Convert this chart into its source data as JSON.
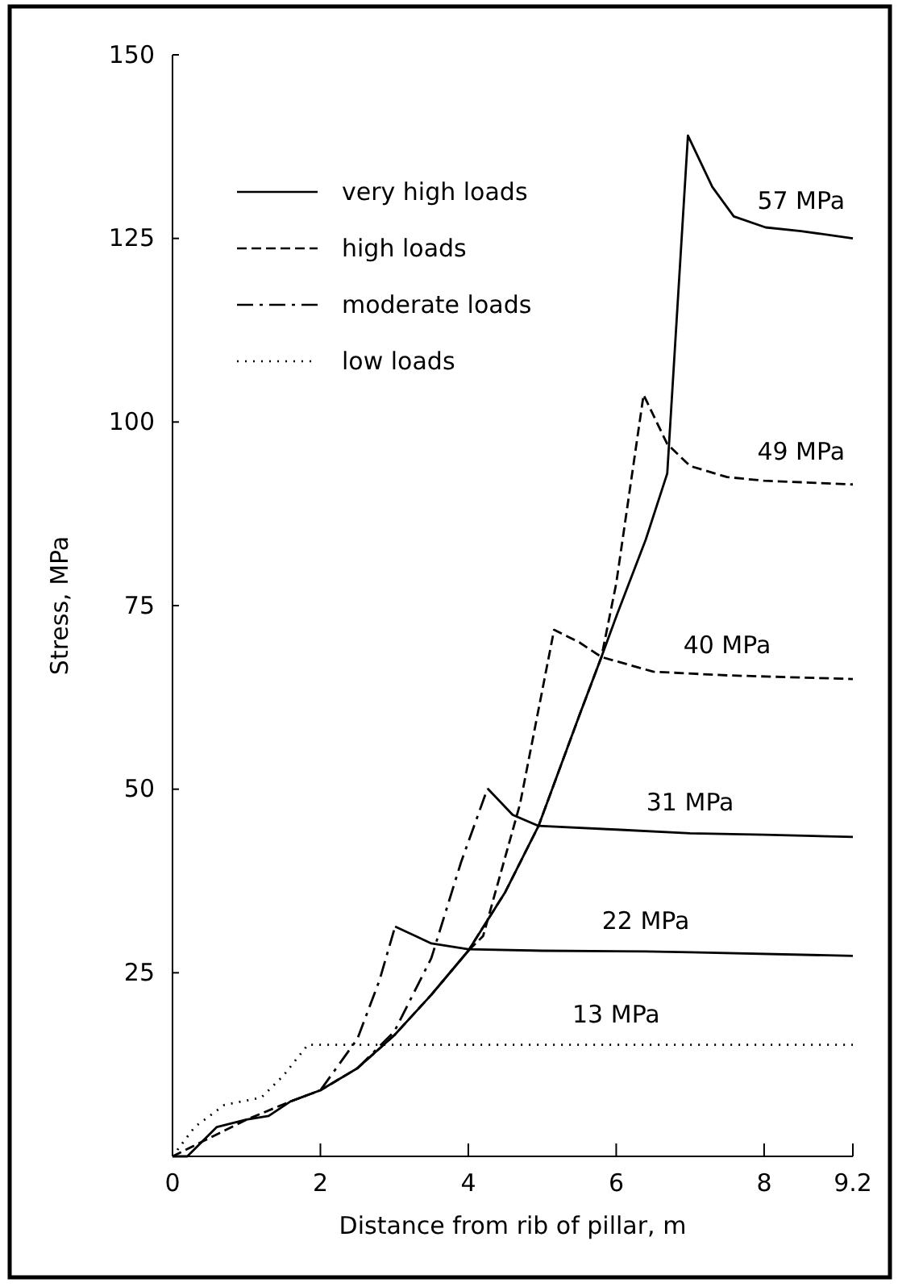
{
  "chart_data": {
    "type": "line",
    "xlabel": "Distance from rib of pillar, m",
    "ylabel": "Stress, MPa",
    "xlim": [
      0,
      9.2
    ],
    "xticks": [
      0,
      2,
      4,
      6,
      8,
      9.2
    ],
    "ylim": [
      0,
      150
    ],
    "yticks": [
      {
        "value": 0,
        "label": null
      },
      25,
      50,
      75,
      100,
      125,
      150
    ],
    "legend": "top left",
    "grid": false,
    "series": [
      {
        "name": "very high loads",
        "color": "#000000",
        "line_style": "solid",
        "x": [
          0,
          0.2,
          0.4,
          0.6,
          1,
          1.3,
          1.6,
          2,
          2.5,
          3,
          3.5,
          4,
          4.5,
          4.95,
          5.5,
          5.8,
          6,
          6.4,
          6.69,
          6.97,
          7.3,
          7.59,
          8.02,
          8.5,
          9.2
        ],
        "values": [
          0,
          0,
          2,
          4,
          5,
          5.5,
          7.5,
          9,
          12,
          16.5,
          22,
          28,
          36,
          45,
          60,
          68,
          73.5,
          84,
          93,
          139,
          132,
          128,
          126.5,
          126,
          125
        ]
      },
      {
        "name": "high loads",
        "color": "#000000",
        "line_style": "dashed",
        "x": [
          0,
          0.4,
          1,
          1.6,
          2,
          2.5,
          3,
          3.5,
          4,
          4.5,
          4.95,
          5.5,
          5.8,
          6,
          6.37,
          6.69,
          7,
          7.5,
          8,
          8.5,
          9.2
        ],
        "values": [
          0,
          2,
          5,
          7.5,
          9,
          12,
          16.5,
          22,
          28,
          36,
          45,
          60,
          68,
          78,
          103.7,
          97,
          94,
          92.5,
          92,
          91.8,
          91.5
        ]
      },
      {
        "color": "#000000",
        "line_style": "dashed",
        "x": [
          3.5,
          4,
          4.2,
          4.7,
          5.16,
          5.5,
          5.8,
          6.5,
          7.5,
          9.2
        ],
        "values": [
          22,
          28,
          30,
          48,
          71.7,
          70,
          68,
          66,
          65.5,
          65
        ]
      },
      {
        "name": "moderate loads",
        "color": "#000000",
        "line_style": "dashdot",
        "x": [
          2.5,
          3,
          3.5,
          3.9,
          4.26
        ],
        "values": [
          12,
          17,
          27,
          40,
          50.1
        ]
      },
      {
        "color": "#000000",
        "line_style": "solid",
        "x": [
          4.26,
          4.6,
          4.95,
          6,
          7,
          8,
          9.2
        ],
        "values": [
          50.1,
          46.5,
          45,
          44.5,
          44,
          43.8,
          43.5
        ]
      },
      {
        "color": "#000000",
        "line_style": "dashdot",
        "x": [
          1.6,
          2,
          2.5,
          2.8,
          3.01
        ],
        "values": [
          7.5,
          9,
          16,
          24,
          31.3
        ]
      },
      {
        "color": "#000000",
        "line_style": "solid",
        "x": [
          3.01,
          3.5,
          4,
          5,
          6.4,
          7,
          9.2
        ],
        "values": [
          31.3,
          29,
          28.2,
          28,
          27.9,
          27.8,
          27.3
        ]
      },
      {
        "name": "low loads",
        "color": "#000000",
        "line_style": "dotted",
        "x": [
          0,
          0.3,
          0.7,
          1.2,
          1.5,
          1.83,
          6,
          9.2
        ],
        "values": [
          0,
          4,
          7,
          8,
          11,
          15.2,
          15.2,
          15.2
        ]
      }
    ],
    "annotations": [
      {
        "text": "57 MPa",
        "x": 8.5,
        "y": 126
      },
      {
        "text": "49 MPa",
        "x": 8.5,
        "y": 91.8
      },
      {
        "text": "40 MPa",
        "x": 7.5,
        "y": 65.5
      },
      {
        "text": "31 MPa",
        "x": 7,
        "y": 44
      },
      {
        "text": "22 MPa",
        "x": 6.4,
        "y": 27.9
      },
      {
        "text": "13 MPa",
        "x": 6,
        "y": 15.2
      }
    ]
  }
}
